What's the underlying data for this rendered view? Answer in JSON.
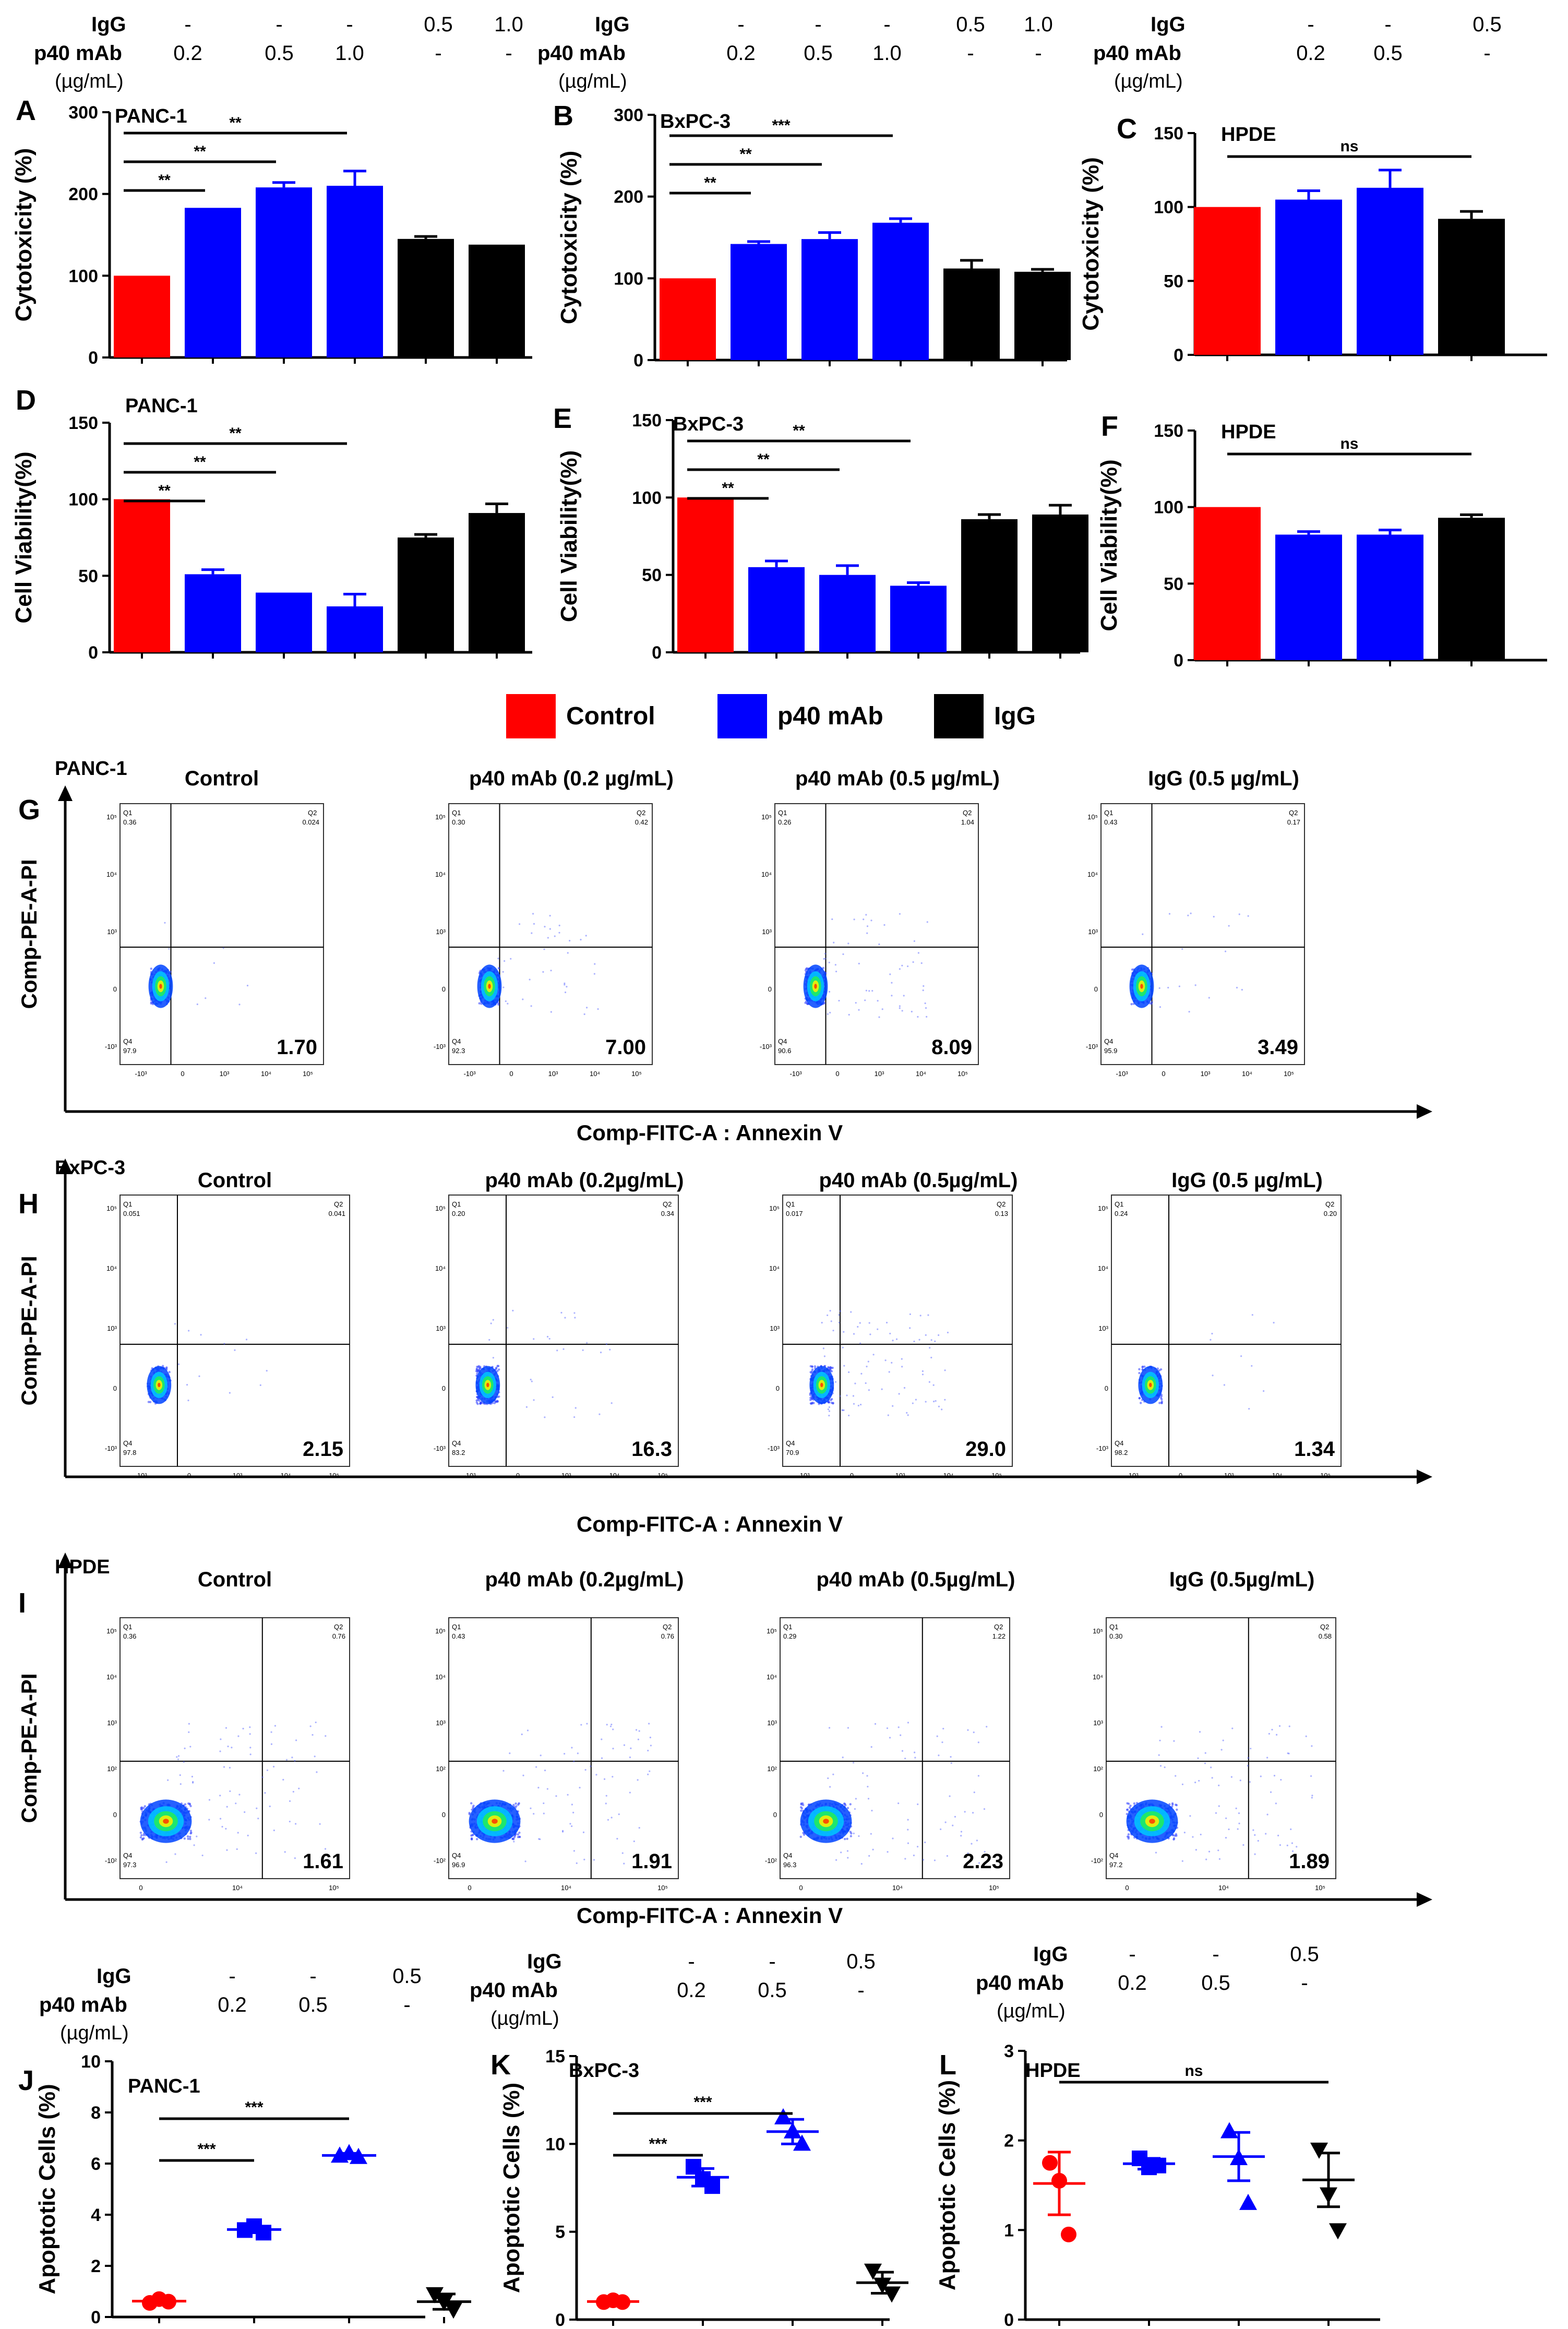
{
  "legend": {
    "items": [
      {
        "label": "Control",
        "color": "#ff0000"
      },
      {
        "label": "p40 mAb",
        "color": "#0000ff"
      },
      {
        "label": "IgG",
        "color": "#000000"
      }
    ]
  },
  "chart_data": [
    {
      "id": "A",
      "type": "bar",
      "panel": "A",
      "title": "PANC-1",
      "ylabel": "Cytotoxicity (%)",
      "ylim": [
        0,
        300
      ],
      "yticks": [
        "0",
        "100",
        "200",
        "300"
      ],
      "treat": {
        "rows": [
          {
            "label": "IgG",
            "values": [
              "-",
              "-",
              "-",
              "0.5",
              "1.0"
            ]
          },
          {
            "label": "p40 mAb",
            "values": [
              "0.2",
              "0.5",
              "1.0",
              "-",
              "-"
            ]
          }
        ],
        "unit": "(µg/mL)"
      },
      "values": [
        100,
        183,
        208,
        210,
        145,
        138
      ],
      "errors": [
        0,
        0,
        6,
        18,
        3,
        0
      ],
      "colors": [
        "#ff0000",
        "#0000ff",
        "#0000ff",
        "#0000ff",
        "#000000",
        "#000000"
      ],
      "sig": [
        {
          "from": 0,
          "to": 1,
          "label": "**"
        },
        {
          "from": 0,
          "to": 2,
          "label": "**"
        },
        {
          "from": 0,
          "to": 3,
          "label": "**"
        }
      ]
    },
    {
      "id": "B",
      "type": "bar",
      "panel": "B",
      "title": "BxPC-3",
      "ylabel": "Cytotoxicity (%)",
      "ylim": [
        0,
        300
      ],
      "yticks": [
        "0",
        "100",
        "200",
        "300"
      ],
      "treat": {
        "rows": [
          {
            "label": "IgG",
            "values": [
              "-",
              "-",
              "-",
              "0.5",
              "1.0"
            ]
          },
          {
            "label": "p40 mAb",
            "values": [
              "0.2",
              "0.5",
              "1.0",
              "-",
              "-"
            ]
          }
        ],
        "unit": "(µg/mL)"
      },
      "values": [
        100,
        142,
        148,
        168,
        112,
        108
      ],
      "errors": [
        0,
        3,
        8,
        5,
        10,
        3
      ],
      "colors": [
        "#ff0000",
        "#0000ff",
        "#0000ff",
        "#0000ff",
        "#000000",
        "#000000"
      ],
      "sig": [
        {
          "from": 0,
          "to": 1,
          "label": "**"
        },
        {
          "from": 0,
          "to": 2,
          "label": "**"
        },
        {
          "from": 0,
          "to": 3,
          "label": "***"
        }
      ]
    },
    {
      "id": "C",
      "type": "bar",
      "panel": "C",
      "title": "HPDE",
      "ylabel": "Cytotoxicity (%)",
      "ylim": [
        0,
        150
      ],
      "yticks": [
        "0",
        "50",
        "100",
        "150"
      ],
      "treat": {
        "rows": [
          {
            "label": "IgG",
            "values": [
              "-",
              "-",
              "0.5"
            ]
          },
          {
            "label": "p40 mAb",
            "values": [
              "0.2",
              "0.5",
              "-"
            ]
          }
        ],
        "unit": "(µg/mL)"
      },
      "values": [
        100,
        105,
        113,
        92
      ],
      "errors": [
        0,
        6,
        12,
        5
      ],
      "colors": [
        "#ff0000",
        "#0000ff",
        "#0000ff",
        "#000000"
      ],
      "sig": [
        {
          "from": 0,
          "to": 3,
          "label": "ns"
        }
      ]
    },
    {
      "id": "D",
      "type": "bar",
      "panel": "D",
      "title": "PANC-1",
      "ylabel": "Cell Viability(%)",
      "ylim": [
        0,
        150
      ],
      "yticks": [
        "0",
        "50",
        "100",
        "150"
      ],
      "values": [
        100,
        51,
        39,
        30,
        75,
        91
      ],
      "errors": [
        0,
        3,
        0,
        8,
        2,
        6
      ],
      "colors": [
        "#ff0000",
        "#0000ff",
        "#0000ff",
        "#0000ff",
        "#000000",
        "#000000"
      ],
      "sig": [
        {
          "from": 0,
          "to": 1,
          "label": "**"
        },
        {
          "from": 0,
          "to": 2,
          "label": "**"
        },
        {
          "from": 0,
          "to": 3,
          "label": "**"
        }
      ]
    },
    {
      "id": "E",
      "type": "bar",
      "panel": "E",
      "title": "BxPC-3",
      "ylabel": "Cell Viability(%)",
      "ylim": [
        0,
        150
      ],
      "yticks": [
        "0",
        "50",
        "100",
        "150"
      ],
      "values": [
        100,
        55,
        50,
        43,
        86,
        89
      ],
      "errors": [
        0,
        4,
        6,
        2,
        3,
        6
      ],
      "colors": [
        "#ff0000",
        "#0000ff",
        "#0000ff",
        "#0000ff",
        "#000000",
        "#000000"
      ],
      "sig": [
        {
          "from": 0,
          "to": 1,
          "label": "**"
        },
        {
          "from": 0,
          "to": 2,
          "label": "**"
        },
        {
          "from": 0,
          "to": 3,
          "label": "**"
        }
      ]
    },
    {
      "id": "F",
      "type": "bar",
      "panel": "F",
      "title": "HPDE",
      "ylabel": "Cell Viability(%)",
      "ylim": [
        0,
        150
      ],
      "yticks": [
        "0",
        "50",
        "100",
        "150"
      ],
      "values": [
        100,
        82,
        82,
        93
      ],
      "errors": [
        0,
        2,
        3,
        2
      ],
      "colors": [
        "#ff0000",
        "#0000ff",
        "#0000ff",
        "#000000"
      ],
      "sig": [
        {
          "from": 0,
          "to": 3,
          "label": "ns"
        }
      ]
    },
    {
      "id": "J",
      "type": "scatter",
      "panel": "J",
      "title": "PANC-1",
      "ylabel": "Apoptotic Cells (%)",
      "ylim": [
        0,
        10
      ],
      "yticks": [
        "0",
        "2",
        "4",
        "6",
        "8",
        "10"
      ],
      "treat": {
        "rows": [
          {
            "label": "IgG",
            "values": [
              "-",
              "-",
              "0.5"
            ]
          },
          {
            "label": "p40 mAb",
            "values": [
              "0.2",
              "0.5",
              "-"
            ]
          }
        ],
        "unit": "(µg/mL)"
      },
      "groups": [
        {
          "points": [
            0.55,
            0.7,
            0.6
          ],
          "mean": 0.62,
          "sd": 0.08,
          "color": "#ff0000",
          "marker": "circle"
        },
        {
          "points": [
            3.4,
            3.55,
            3.3
          ],
          "mean": 3.42,
          "sd": 0.1,
          "color": "#0000ff",
          "marker": "square"
        },
        {
          "points": [
            6.3,
            6.4,
            6.25
          ],
          "mean": 6.32,
          "sd": 0.08,
          "color": "#0000ff",
          "marker": "triangle-up"
        },
        {
          "points": [
            0.9,
            0.6,
            0.3
          ],
          "mean": 0.6,
          "sd": 0.3,
          "color": "#000000",
          "marker": "triangle-down"
        }
      ],
      "sig": [
        {
          "from": 0,
          "to": 1,
          "label": "***"
        },
        {
          "from": 0,
          "to": 2,
          "label": "***"
        }
      ]
    },
    {
      "id": "K",
      "type": "scatter",
      "panel": "K",
      "title": "BxPC-3",
      "ylabel": "Apoptotic Cells (%)",
      "ylim": [
        0,
        15
      ],
      "yticks": [
        "0",
        "5",
        "10",
        "15"
      ],
      "treat": {
        "rows": [
          {
            "label": "IgG",
            "values": [
              "-",
              "-",
              "0.5"
            ]
          },
          {
            "label": "p40 mAb",
            "values": [
              "0.2",
              "0.5",
              "-"
            ]
          }
        ],
        "unit": "(µg/mL)"
      },
      "groups": [
        {
          "points": [
            1.0,
            1.1,
            1.0
          ],
          "mean": 1.03,
          "sd": 0.05,
          "color": "#ff0000",
          "marker": "circle"
        },
        {
          "points": [
            8.7,
            8.0,
            7.6
          ],
          "mean": 8.1,
          "sd": 0.5,
          "color": "#0000ff",
          "marker": "square"
        },
        {
          "points": [
            11.5,
            10.7,
            10.0
          ],
          "mean": 10.7,
          "sd": 0.7,
          "color": "#0000ff",
          "marker": "triangle-up"
        },
        {
          "points": [
            2.8,
            2.0,
            1.5
          ],
          "mean": 2.1,
          "sd": 0.6,
          "color": "#000000",
          "marker": "triangle-down"
        }
      ],
      "sig": [
        {
          "from": 0,
          "to": 1,
          "label": "***"
        },
        {
          "from": 0,
          "to": 2,
          "label": "***"
        }
      ]
    },
    {
      "id": "L",
      "type": "scatter",
      "panel": "L",
      "title": "HPDE",
      "ylabel": "Apoptotic Cells (%)",
      "ylim": [
        0,
        3
      ],
      "yticks": [
        "0",
        "1",
        "2",
        "3"
      ],
      "treat": {
        "rows": [
          {
            "label": "IgG",
            "values": [
              "-",
              "-",
              "0.5"
            ]
          },
          {
            "label": "p40 mAb",
            "values": [
              "0.2",
              "0.5",
              "-"
            ]
          }
        ],
        "unit": "(µg/mL)"
      },
      "groups": [
        {
          "points": [
            1.75,
            1.55,
            0.95
          ],
          "mean": 1.52,
          "sd": 0.35,
          "color": "#ff0000",
          "marker": "circle"
        },
        {
          "points": [
            1.8,
            1.7,
            1.72
          ],
          "mean": 1.74,
          "sd": 0.06,
          "color": "#0000ff",
          "marker": "square"
        },
        {
          "points": [
            2.1,
            1.8,
            1.3
          ],
          "mean": 1.82,
          "sd": 0.27,
          "color": "#0000ff",
          "marker": "triangle-up"
        },
        {
          "points": [
            1.9,
            1.4,
            1.0
          ],
          "mean": 1.56,
          "sd": 0.3,
          "color": "#000000",
          "marker": "triangle-down"
        }
      ],
      "sig": [
        {
          "from": 0,
          "to": 3,
          "label": "ns"
        }
      ]
    }
  ],
  "flow": [
    {
      "panel": "G",
      "cell_line": "PANC-1",
      "ylabel": "Comp-PE-A-PI",
      "xlabel": "Comp-FITC-A : Annexin V",
      "xticks": [
        "-10³",
        "0",
        "10³",
        "10⁴",
        "10⁵"
      ],
      "yticks": [
        "10⁵",
        "10⁴",
        "10³",
        "0",
        "-10³"
      ],
      "plots": [
        {
          "title": "Control",
          "q1": "0.36",
          "q2": "0.024",
          "q4": "97.9",
          "apoptotic": "1.70",
          "spread": 0.05,
          "density": 1.0
        },
        {
          "title": "p40 mAb (0.2 µg/mL)",
          "q1": "0.30",
          "q2": "0.42",
          "q4": "92.3",
          "apoptotic": "7.00",
          "spread": 0.25,
          "density": 1.4
        },
        {
          "title": "p40 mAb (0.5 µg/mL)",
          "q1": "0.26",
          "q2": "1.04",
          "q4": "90.6",
          "apoptotic": "8.09",
          "spread": 0.35,
          "density": 1.6
        },
        {
          "title": "IgG (0.5 µg/mL)",
          "q1": "0.43",
          "q2": "0.17",
          "q4": "95.9",
          "apoptotic": "3.49",
          "spread": 0.12,
          "density": 1.1
        }
      ]
    },
    {
      "panel": "H",
      "cell_line": "BxPC-3",
      "ylabel": "Comp-PE-A-PI",
      "xlabel": "Comp-FITC-A : Annexin V",
      "xticks": [
        "-10³",
        "0",
        "10³",
        "10⁴",
        "10⁵"
      ],
      "yticks": [
        "10⁵",
        "10⁴",
        "10³",
        "0",
        "-10³"
      ],
      "plots": [
        {
          "title": "Control",
          "q1": "0.051",
          "q2": "0.041",
          "q4": "97.8",
          "apoptotic": "2.15",
          "spread": 0.08,
          "density": 1.1
        },
        {
          "title": "p40 mAb (0.2µg/mL)",
          "q1": "0.20",
          "q2": "0.34",
          "q4": "83.2",
          "apoptotic": "16.3",
          "spread": 0.2,
          "density": 1.8
        },
        {
          "title": "p40 mAb (0.5µg/mL)",
          "q1": "0.017",
          "q2": "0.13",
          "q4": "70.9",
          "apoptotic": "29.0",
          "spread": 0.55,
          "density": 1.8
        },
        {
          "title": "IgG (0.5 µg/mL)",
          "q1": "0.24",
          "q2": "0.20",
          "q4": "98.2",
          "apoptotic": "1.34",
          "spread": 0.06,
          "density": 0.9
        }
      ]
    },
    {
      "panel": "I",
      "cell_line": "HPDE",
      "ylabel": "Comp-PE-A-PI",
      "xlabel": "Comp-FITC-A : Annexin V",
      "xticks": [
        "0",
        "10⁴",
        "10⁵"
      ],
      "yticks": [
        "10⁵",
        "10⁴",
        "10³",
        "10²",
        "0",
        "-10²"
      ],
      "plots": [
        {
          "title": "Control",
          "q1": "0.36",
          "q2": "0.76",
          "q4": "97.3",
          "apoptotic": "1.61",
          "spread": 0.5,
          "density": 2.2
        },
        {
          "title": "p40 mAb (0.2µg/mL)",
          "q1": "0.43",
          "q2": "0.76",
          "q4": "96.9",
          "apoptotic": "1.91",
          "spread": 0.5,
          "density": 2.2
        },
        {
          "title": "p40 mAb (0.5µg/mL)",
          "q1": "0.29",
          "q2": "1.22",
          "q4": "96.3",
          "apoptotic": "2.23",
          "spread": 0.5,
          "density": 2.2
        },
        {
          "title": "IgG (0.5µg/mL)",
          "q1": "0.30",
          "q2": "0.58",
          "q4": "97.2",
          "apoptotic": "1.89",
          "spread": 0.5,
          "density": 2.2
        }
      ]
    }
  ]
}
